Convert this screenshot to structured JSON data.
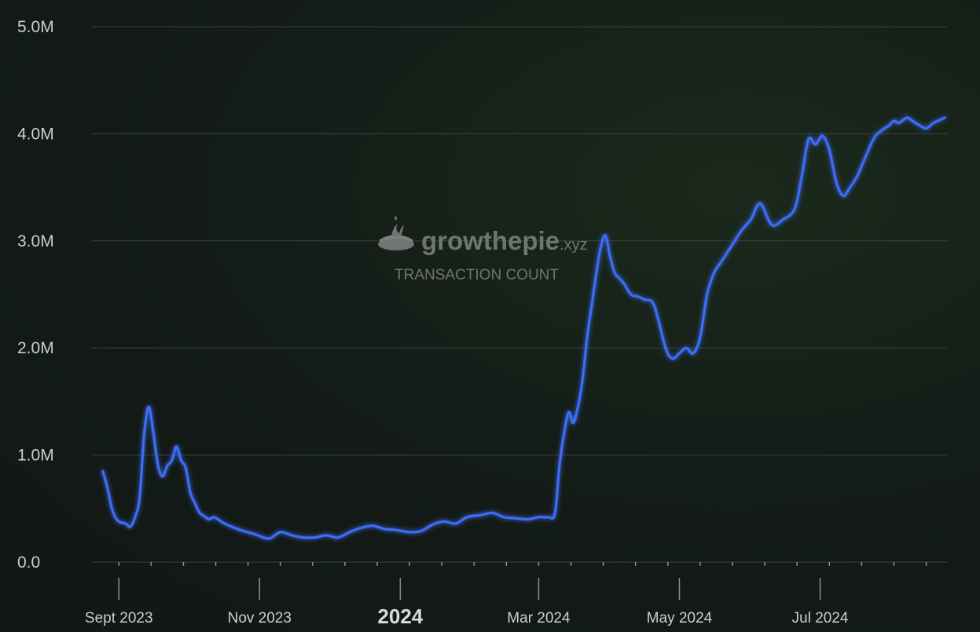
{
  "watermark": {
    "brand_main": "growthepie",
    "brand_suffix": ".xyz",
    "subtitle": "TRANSACTION COUNT",
    "logo_icon": "pie-logo-icon"
  },
  "colors": {
    "line": "#3d6cf5",
    "grid": "#3a4440",
    "text": "#c9d0cc"
  },
  "chart_data": {
    "type": "line",
    "title": "",
    "xlabel": "",
    "ylabel": "",
    "ylim": [
      0,
      5000000
    ],
    "grid": true,
    "y_ticks": [
      {
        "value": 0,
        "label": "0.0"
      },
      {
        "value": 1000000,
        "label": "1.0M"
      },
      {
        "value": 2000000,
        "label": "2.0M"
      },
      {
        "value": 3000000,
        "label": "3.0M"
      },
      {
        "value": 4000000,
        "label": "4.0M"
      },
      {
        "value": 5000000,
        "label": "5.0M"
      }
    ],
    "xlim": [
      "2023-08-20",
      "2024-08-25"
    ],
    "x_ticks": [
      {
        "date": "2023-09-01",
        "label": "Sept 2023",
        "bold": false
      },
      {
        "date": "2023-11-01",
        "label": "Nov 2023",
        "bold": false
      },
      {
        "date": "2024-01-01",
        "label": "2024",
        "bold": true
      },
      {
        "date": "2024-03-01",
        "label": "Mar 2024",
        "bold": false
      },
      {
        "date": "2024-05-01",
        "label": "May 2024",
        "bold": false
      },
      {
        "date": "2024-07-01",
        "label": "Jul 2024",
        "bold": false
      }
    ],
    "series": [
      {
        "name": "",
        "x": [
          "2023-08-25",
          "2023-08-27",
          "2023-08-29",
          "2023-08-31",
          "2023-09-02",
          "2023-09-04",
          "2023-09-06",
          "2023-09-08",
          "2023-09-10",
          "2023-09-12",
          "2023-09-14",
          "2023-09-16",
          "2023-09-18",
          "2023-09-20",
          "2023-09-22",
          "2023-09-24",
          "2023-09-26",
          "2023-09-28",
          "2023-09-30",
          "2023-10-02",
          "2023-10-04",
          "2023-10-06",
          "2023-10-08",
          "2023-10-10",
          "2023-10-12",
          "2023-10-14",
          "2023-10-16",
          "2023-10-20",
          "2023-10-25",
          "2023-10-30",
          "2023-11-05",
          "2023-11-10",
          "2023-11-15",
          "2023-11-20",
          "2023-11-25",
          "2023-11-30",
          "2023-12-05",
          "2023-12-10",
          "2023-12-15",
          "2023-12-20",
          "2023-12-25",
          "2023-12-30",
          "2024-01-05",
          "2024-01-10",
          "2024-01-15",
          "2024-01-20",
          "2024-01-25",
          "2024-01-30",
          "2024-02-05",
          "2024-02-10",
          "2024-02-15",
          "2024-02-20",
          "2024-02-25",
          "2024-03-01",
          "2024-03-05",
          "2024-03-08",
          "2024-03-10",
          "2024-03-12",
          "2024-03-14",
          "2024-03-16",
          "2024-03-18",
          "2024-03-20",
          "2024-03-22",
          "2024-03-24",
          "2024-03-26",
          "2024-03-28",
          "2024-03-30",
          "2024-04-01",
          "2024-04-03",
          "2024-04-05",
          "2024-04-07",
          "2024-04-10",
          "2024-04-13",
          "2024-04-16",
          "2024-04-20",
          "2024-04-25",
          "2024-04-28",
          "2024-05-01",
          "2024-05-04",
          "2024-05-07",
          "2024-05-10",
          "2024-05-13",
          "2024-05-16",
          "2024-05-19",
          "2024-05-22",
          "2024-05-25",
          "2024-05-28",
          "2024-06-01",
          "2024-06-05",
          "2024-06-10",
          "2024-06-15",
          "2024-06-20",
          "2024-06-23",
          "2024-06-26",
          "2024-06-29",
          "2024-07-02",
          "2024-07-05",
          "2024-07-08",
          "2024-07-11",
          "2024-07-14",
          "2024-07-17",
          "2024-07-20",
          "2024-07-23",
          "2024-07-25",
          "2024-07-27",
          "2024-07-29",
          "2024-07-31",
          "2024-08-02",
          "2024-08-04",
          "2024-08-06",
          "2024-08-08",
          "2024-08-10",
          "2024-08-13",
          "2024-08-16",
          "2024-08-19",
          "2024-08-22",
          "2024-08-24"
        ],
        "values": [
          850000,
          700000,
          500000,
          400000,
          370000,
          360000,
          330000,
          420000,
          600000,
          1200000,
          1450000,
          1200000,
          900000,
          800000,
          900000,
          950000,
          1080000,
          950000,
          880000,
          650000,
          550000,
          460000,
          430000,
          400000,
          420000,
          400000,
          370000,
          330000,
          290000,
          260000,
          220000,
          280000,
          250000,
          230000,
          230000,
          250000,
          230000,
          280000,
          320000,
          340000,
          310000,
          300000,
          280000,
          290000,
          350000,
          380000,
          360000,
          420000,
          440000,
          460000,
          420000,
          410000,
          400000,
          420000,
          420000,
          450000,
          900000,
          1200000,
          1400000,
          1300000,
          1450000,
          1700000,
          2100000,
          2400000,
          2700000,
          2950000,
          3050000,
          2850000,
          2700000,
          2650000,
          2600000,
          2500000,
          2480000,
          2450000,
          2400000,
          2000000,
          1900000,
          1950000,
          2000000,
          1950000,
          2100000,
          2500000,
          2700000,
          2800000,
          2900000,
          3000000,
          3100000,
          3200000,
          3350000,
          3150000,
          3200000,
          3300000,
          3600000,
          3950000,
          3900000,
          3980000,
          3850000,
          3550000,
          3420000,
          3500000,
          3600000,
          3750000,
          3900000,
          3980000,
          4020000,
          4050000,
          4080000,
          4120000,
          4100000,
          4130000,
          4150000,
          4120000,
          4080000,
          4050000,
          4100000,
          4130000,
          4150000
        ]
      }
    ]
  }
}
